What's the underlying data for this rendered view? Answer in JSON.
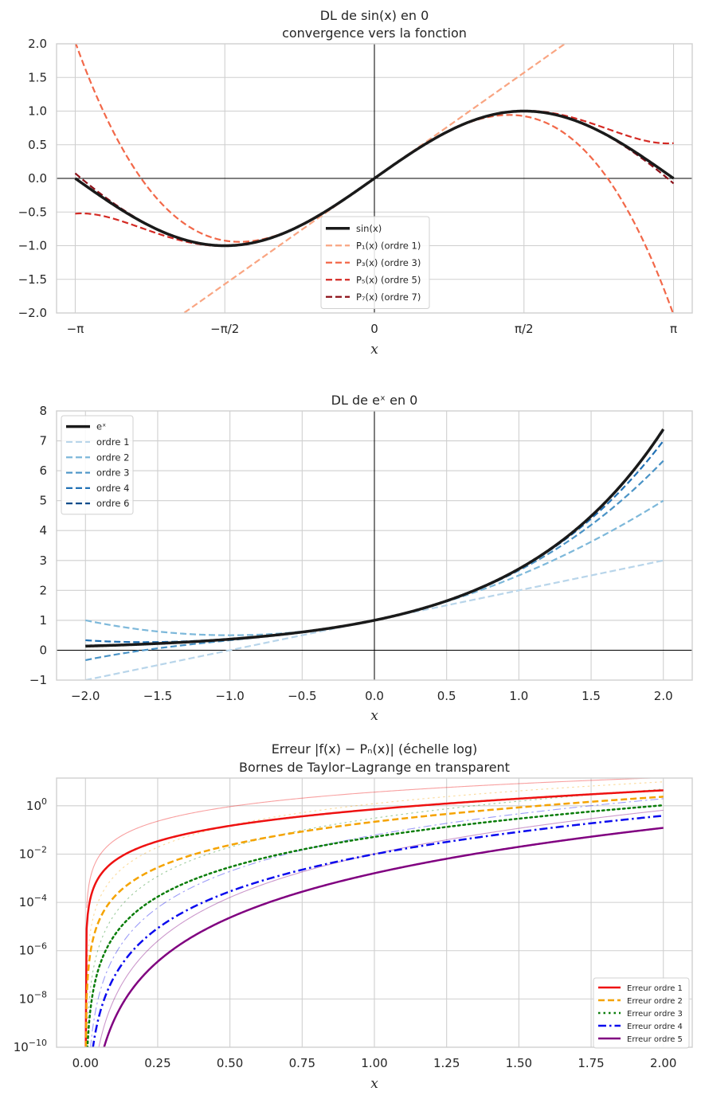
{
  "chart_data": [
    {
      "id": "p1",
      "type": "line",
      "title": "DL de sin(x) en 0",
      "subtitle": "convergence vers la fonction",
      "xlabel": "x",
      "xlim": [
        -3.3379,
        3.3379
      ],
      "ylim": [
        -2.0,
        2.0
      ],
      "xticks": [
        {
          "value": -3.14159265,
          "label": "−π"
        },
        {
          "value": -1.57079633,
          "label": "−π/2"
        },
        {
          "value": 0,
          "label": "0"
        },
        {
          "value": 1.57079633,
          "label": "π/2"
        },
        {
          "value": 3.14159265,
          "label": "π"
        }
      ],
      "yticks": [
        {
          "value": 2.0,
          "label": "2.0"
        },
        {
          "value": 1.5,
          "label": "1.5"
        },
        {
          "value": 1.0,
          "label": "1.0"
        },
        {
          "value": 0.5,
          "label": "0.5"
        },
        {
          "value": 0.0,
          "label": "0.0"
        },
        {
          "value": -0.5,
          "label": "−0.5"
        },
        {
          "value": -1.0,
          "label": "−1.0"
        },
        {
          "value": -1.5,
          "label": "−1.5"
        },
        {
          "value": -2.0,
          "label": "−2.0"
        }
      ],
      "x_domain": [
        -3.14159265,
        3.14159265
      ],
      "legend_position": "lower-center",
      "series": [
        {
          "name": "sin(x)",
          "fn": "sin",
          "color": "#1a1a1a",
          "dash": "solid",
          "width": 3.5
        },
        {
          "name": "P₁(x) (ordre 1)",
          "fn": "sin_taylor",
          "order": 1,
          "color": "#f9a582",
          "dash": "dashed",
          "width": 2.2
        },
        {
          "name": "P₃(x) (ordre 3)",
          "fn": "sin_taylor",
          "order": 3,
          "color": "#f26849",
          "dash": "dashed",
          "width": 2.2
        },
        {
          "name": "P₅(x) (ordre 5)",
          "fn": "sin_taylor",
          "order": 5,
          "color": "#d42a24",
          "dash": "dashed",
          "width": 2.2
        },
        {
          "name": "P₇(x) (ordre 7)",
          "fn": "sin_taylor",
          "order": 7,
          "color": "#8c1018",
          "dash": "dashed",
          "width": 2.2
        }
      ]
    },
    {
      "id": "p2",
      "type": "line",
      "title": "DL de eˣ en 0",
      "xlabel": "x",
      "xlim": [
        -2.2,
        2.2
      ],
      "ylim": [
        -1.0,
        8.0
      ],
      "xticks": [
        {
          "value": -2.0,
          "label": "−2.0"
        },
        {
          "value": -1.5,
          "label": "−1.5"
        },
        {
          "value": -1.0,
          "label": "−1.0"
        },
        {
          "value": -0.5,
          "label": "−0.5"
        },
        {
          "value": 0.0,
          "label": "0.0"
        },
        {
          "value": 0.5,
          "label": "0.5"
        },
        {
          "value": 1.0,
          "label": "1.0"
        },
        {
          "value": 1.5,
          "label": "1.5"
        },
        {
          "value": 2.0,
          "label": "2.0"
        }
      ],
      "yticks": [
        {
          "value": 8,
          "label": "8"
        },
        {
          "value": 7,
          "label": "7"
        },
        {
          "value": 6,
          "label": "6"
        },
        {
          "value": 5,
          "label": "5"
        },
        {
          "value": 4,
          "label": "4"
        },
        {
          "value": 3,
          "label": "3"
        },
        {
          "value": 2,
          "label": "2"
        },
        {
          "value": 1,
          "label": "1"
        },
        {
          "value": 0,
          "label": "0"
        },
        {
          "value": -1,
          "label": "−1"
        }
      ],
      "x_domain": [
        -2.0,
        2.0
      ],
      "legend_position": "upper-left",
      "series": [
        {
          "name": "eˣ",
          "fn": "exp",
          "color": "#1a1a1a",
          "dash": "solid",
          "width": 3.5
        },
        {
          "name": "ordre 1",
          "fn": "exp_taylor",
          "order": 1,
          "color": "#b8d5ea",
          "dash": "dashed",
          "width": 2.2
        },
        {
          "name": "ordre 2",
          "fn": "exp_taylor",
          "order": 2,
          "color": "#7db8da",
          "dash": "dashed",
          "width": 2.2
        },
        {
          "name": "ordre 3",
          "fn": "exp_taylor",
          "order": 3,
          "color": "#4a93c6",
          "dash": "dashed",
          "width": 2.2
        },
        {
          "name": "ordre 4",
          "fn": "exp_taylor",
          "order": 4,
          "color": "#2171b5",
          "dash": "dashed",
          "width": 2.2
        },
        {
          "name": "ordre 6",
          "fn": "exp_taylor",
          "order": 6,
          "color": "#0d4c8a",
          "dash": "dashed",
          "width": 2.2
        }
      ]
    },
    {
      "id": "p3",
      "type": "line",
      "yscale": "log",
      "title": "Erreur |f(x) − Pₙ(x)| (échelle log)",
      "subtitle": "Bornes de Taylor–Lagrange en transparent",
      "xlabel": "x",
      "xlim": [
        -0.1,
        2.1
      ],
      "ylim_log10": [
        -10,
        1.15
      ],
      "xticks": [
        {
          "value": 0.0,
          "label": "0.00"
        },
        {
          "value": 0.25,
          "label": "0.25"
        },
        {
          "value": 0.5,
          "label": "0.50"
        },
        {
          "value": 0.75,
          "label": "0.75"
        },
        {
          "value": 1.0,
          "label": "1.00"
        },
        {
          "value": 1.25,
          "label": "1.25"
        },
        {
          "value": 1.5,
          "label": "1.50"
        },
        {
          "value": 1.75,
          "label": "1.75"
        },
        {
          "value": 2.0,
          "label": "2.00"
        }
      ],
      "yticks": [
        {
          "exp": 0,
          "base": "10",
          "sup": "0"
        },
        {
          "exp": -2,
          "base": "10",
          "sup": "−2"
        },
        {
          "exp": -4,
          "base": "10",
          "sup": "−4"
        },
        {
          "exp": -6,
          "base": "10",
          "sup": "−6"
        },
        {
          "exp": -8,
          "base": "10",
          "sup": "−8"
        },
        {
          "exp": -10,
          "base": "10",
          "sup": "−10"
        }
      ],
      "x_domain": [
        0.0,
        2.0
      ],
      "legend_position": "lower-right",
      "series": [
        {
          "name": "Erreur ordre 1",
          "fn": "exp_error",
          "order": 1,
          "color": "#ee1111",
          "dash": "solid",
          "width": 2.5
        },
        {
          "name": "Erreur ordre 2",
          "fn": "exp_error",
          "order": 2,
          "color": "#f5a300",
          "dash": "dashed",
          "width": 2.5
        },
        {
          "name": "Erreur ordre 3",
          "fn": "exp_error",
          "order": 3,
          "color": "#0a7d0a",
          "dash": "dotted",
          "width": 2.5
        },
        {
          "name": "Erreur ordre 4",
          "fn": "exp_error",
          "order": 4,
          "color": "#0a0aee",
          "dash": "dashdot",
          "width": 2.5
        },
        {
          "name": "Erreur ordre 5",
          "fn": "exp_error",
          "order": 5,
          "color": "#800080",
          "dash": "solid",
          "width": 2.5
        }
      ],
      "bounds": [
        {
          "name": "Borne ordre 1",
          "order": 1,
          "color": "#ee1111",
          "dash": "solid"
        },
        {
          "name": "Borne ordre 2",
          "order": 2,
          "color": "#f5a300",
          "dash": "dotted"
        },
        {
          "name": "Borne ordre 3",
          "order": 3,
          "color": "#0a7d0a",
          "dash": "dotted"
        },
        {
          "name": "Borne ordre 4",
          "order": 4,
          "color": "#0a0aee",
          "dash": "dashdot"
        },
        {
          "name": "Borne ordre 5",
          "order": 5,
          "color": "#800080",
          "dash": "solid"
        }
      ]
    }
  ]
}
